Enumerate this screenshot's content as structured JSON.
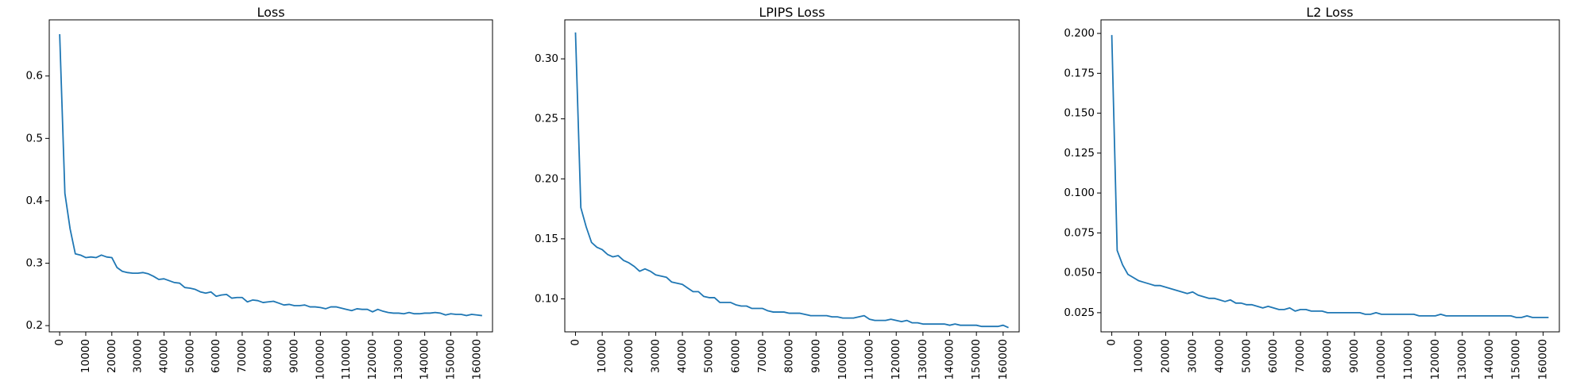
{
  "chart_data": [
    {
      "type": "line",
      "title": "Loss",
      "xlabel": "",
      "ylabel": "",
      "xlim": [
        -4000,
        166000
      ],
      "ylim": [
        0.19,
        0.69
      ],
      "xticks": [
        0,
        10000,
        20000,
        30000,
        40000,
        50000,
        60000,
        70000,
        80000,
        90000,
        100000,
        110000,
        120000,
        130000,
        140000,
        150000,
        160000
      ],
      "xtick_labels": [
        "0",
        "10000",
        "20000",
        "30000",
        "40000",
        "50000",
        "60000",
        "70000",
        "80000",
        "90000",
        "100000",
        "110000",
        "120000",
        "130000",
        "140000",
        "150000",
        "160000"
      ],
      "yticks": [
        0.2,
        0.3,
        0.4,
        0.5,
        0.6
      ],
      "ytick_labels": [
        "0.2",
        "0.3",
        "0.4",
        "0.5",
        "0.6"
      ],
      "line_color": "#1f77b4",
      "grid": false,
      "series": [
        {
          "x": [
            0,
            2000,
            4000,
            6000,
            8000,
            10000,
            12000,
            14000,
            16000,
            18000,
            20000,
            22000,
            24000,
            26000,
            28000,
            30000,
            32000,
            34000,
            36000,
            38000,
            40000,
            42000,
            44000,
            46000,
            48000,
            50000,
            52000,
            54000,
            56000,
            58000,
            60000,
            62000,
            64000,
            66000,
            68000,
            70000,
            72000,
            74000,
            76000,
            78000,
            80000,
            82000,
            84000,
            86000,
            88000,
            90000,
            92000,
            94000,
            96000,
            98000,
            100000,
            102000,
            104000,
            106000,
            108000,
            110000,
            112000,
            114000,
            116000,
            118000,
            120000,
            122000,
            124000,
            126000,
            128000,
            130000,
            132000,
            134000,
            136000,
            138000,
            140000,
            142000,
            144000,
            146000,
            148000,
            150000,
            152000,
            154000,
            156000,
            158000,
            160000,
            162000
          ],
          "y": [
            0.667,
            0.412,
            0.355,
            0.315,
            0.313,
            0.309,
            0.31,
            0.309,
            0.313,
            0.31,
            0.309,
            0.293,
            0.287,
            0.285,
            0.284,
            0.284,
            0.285,
            0.283,
            0.279,
            0.274,
            0.275,
            0.272,
            0.269,
            0.268,
            0.261,
            0.26,
            0.258,
            0.254,
            0.252,
            0.254,
            0.247,
            0.249,
            0.25,
            0.244,
            0.245,
            0.245,
            0.238,
            0.241,
            0.24,
            0.237,
            0.238,
            0.239,
            0.236,
            0.233,
            0.234,
            0.232,
            0.232,
            0.233,
            0.23,
            0.23,
            0.229,
            0.227,
            0.23,
            0.23,
            0.228,
            0.226,
            0.224,
            0.227,
            0.226,
            0.226,
            0.222,
            0.226,
            0.223,
            0.221,
            0.22,
            0.22,
            0.219,
            0.221,
            0.219,
            0.219,
            0.22,
            0.22,
            0.221,
            0.22,
            0.217,
            0.219,
            0.218,
            0.218,
            0.216,
            0.218,
            0.217,
            0.216
          ]
        }
      ]
    },
    {
      "type": "line",
      "title": "LPIPS Loss",
      "xlabel": "",
      "ylabel": "",
      "xlim": [
        -4000,
        166000
      ],
      "ylim": [
        0.0725,
        0.3325
      ],
      "xticks": [
        0,
        10000,
        20000,
        30000,
        40000,
        50000,
        60000,
        70000,
        80000,
        90000,
        100000,
        110000,
        120000,
        130000,
        140000,
        150000,
        160000
      ],
      "xtick_labels": [
        "0",
        "10000",
        "20000",
        "30000",
        "40000",
        "50000",
        "60000",
        "70000",
        "80000",
        "90000",
        "100000",
        "110000",
        "120000",
        "130000",
        "140000",
        "150000",
        "160000"
      ],
      "yticks": [
        0.1,
        0.15,
        0.2,
        0.25,
        0.3
      ],
      "ytick_labels": [
        "0.10",
        "0.15",
        "0.20",
        "0.25",
        "0.30"
      ],
      "line_color": "#1f77b4",
      "grid": false,
      "series": [
        {
          "x": [
            0,
            2000,
            4000,
            6000,
            8000,
            10000,
            12000,
            14000,
            16000,
            18000,
            20000,
            22000,
            24000,
            26000,
            28000,
            30000,
            32000,
            34000,
            36000,
            38000,
            40000,
            42000,
            44000,
            46000,
            48000,
            50000,
            52000,
            54000,
            56000,
            58000,
            60000,
            62000,
            64000,
            66000,
            68000,
            70000,
            72000,
            74000,
            76000,
            78000,
            80000,
            82000,
            84000,
            86000,
            88000,
            90000,
            92000,
            94000,
            96000,
            98000,
            100000,
            102000,
            104000,
            106000,
            108000,
            110000,
            112000,
            114000,
            116000,
            118000,
            120000,
            122000,
            124000,
            126000,
            128000,
            130000,
            132000,
            134000,
            136000,
            138000,
            140000,
            142000,
            144000,
            146000,
            148000,
            150000,
            152000,
            154000,
            156000,
            158000,
            160000,
            162000
          ],
          "y": [
            0.322,
            0.176,
            0.16,
            0.147,
            0.143,
            0.141,
            0.137,
            0.135,
            0.136,
            0.132,
            0.13,
            0.127,
            0.123,
            0.125,
            0.123,
            0.12,
            0.119,
            0.118,
            0.114,
            0.113,
            0.112,
            0.109,
            0.106,
            0.106,
            0.102,
            0.101,
            0.101,
            0.097,
            0.097,
            0.097,
            0.095,
            0.094,
            0.094,
            0.092,
            0.092,
            0.092,
            0.09,
            0.089,
            0.089,
            0.089,
            0.088,
            0.088,
            0.088,
            0.087,
            0.086,
            0.086,
            0.086,
            0.086,
            0.085,
            0.085,
            0.084,
            0.084,
            0.084,
            0.085,
            0.086,
            0.083,
            0.082,
            0.082,
            0.082,
            0.083,
            0.082,
            0.081,
            0.082,
            0.08,
            0.08,
            0.079,
            0.079,
            0.079,
            0.079,
            0.079,
            0.078,
            0.079,
            0.078,
            0.078,
            0.078,
            0.078,
            0.077,
            0.077,
            0.077,
            0.077,
            0.078,
            0.076
          ]
        }
      ]
    },
    {
      "type": "line",
      "title": "L2 Loss",
      "xlabel": "",
      "ylabel": "",
      "xlim": [
        -4000,
        166000
      ],
      "ylim": [
        0.013,
        0.2085
      ],
      "xticks": [
        0,
        10000,
        20000,
        30000,
        40000,
        50000,
        60000,
        70000,
        80000,
        90000,
        100000,
        110000,
        120000,
        130000,
        140000,
        150000,
        160000
      ],
      "xtick_labels": [
        "0",
        "10000",
        "20000",
        "30000",
        "40000",
        "50000",
        "60000",
        "70000",
        "80000",
        "90000",
        "100000",
        "110000",
        "120000",
        "130000",
        "140000",
        "150000",
        "160000"
      ],
      "yticks": [
        0.025,
        0.05,
        0.075,
        0.1,
        0.125,
        0.15,
        0.175,
        0.2
      ],
      "ytick_labels": [
        "0.025",
        "0.050",
        "0.075",
        "0.100",
        "0.125",
        "0.150",
        "0.175",
        "0.200"
      ],
      "line_color": "#1f77b4",
      "grid": false,
      "series": [
        {
          "x": [
            0,
            2000,
            4000,
            6000,
            8000,
            10000,
            12000,
            14000,
            16000,
            18000,
            20000,
            22000,
            24000,
            26000,
            28000,
            30000,
            32000,
            34000,
            36000,
            38000,
            40000,
            42000,
            44000,
            46000,
            48000,
            50000,
            52000,
            54000,
            56000,
            58000,
            60000,
            62000,
            64000,
            66000,
            68000,
            70000,
            72000,
            74000,
            76000,
            78000,
            80000,
            82000,
            84000,
            86000,
            88000,
            90000,
            92000,
            94000,
            96000,
            98000,
            100000,
            102000,
            104000,
            106000,
            108000,
            110000,
            112000,
            114000,
            116000,
            118000,
            120000,
            122000,
            124000,
            126000,
            128000,
            130000,
            132000,
            134000,
            136000,
            138000,
            140000,
            142000,
            144000,
            146000,
            148000,
            150000,
            152000,
            154000,
            156000,
            158000,
            160000,
            162000
          ],
          "y": [
            0.199,
            0.064,
            0.055,
            0.049,
            0.047,
            0.045,
            0.044,
            0.043,
            0.042,
            0.042,
            0.041,
            0.04,
            0.039,
            0.038,
            0.037,
            0.038,
            0.036,
            0.035,
            0.034,
            0.034,
            0.033,
            0.032,
            0.033,
            0.031,
            0.031,
            0.03,
            0.03,
            0.029,
            0.028,
            0.029,
            0.028,
            0.027,
            0.027,
            0.028,
            0.026,
            0.027,
            0.027,
            0.026,
            0.026,
            0.026,
            0.025,
            0.025,
            0.025,
            0.025,
            0.025,
            0.025,
            0.025,
            0.024,
            0.024,
            0.025,
            0.024,
            0.024,
            0.024,
            0.024,
            0.024,
            0.024,
            0.024,
            0.023,
            0.023,
            0.023,
            0.023,
            0.024,
            0.023,
            0.023,
            0.023,
            0.023,
            0.023,
            0.023,
            0.023,
            0.023,
            0.023,
            0.023,
            0.023,
            0.023,
            0.023,
            0.022,
            0.022,
            0.023,
            0.022,
            0.022,
            0.022,
            0.022
          ]
        }
      ]
    }
  ]
}
